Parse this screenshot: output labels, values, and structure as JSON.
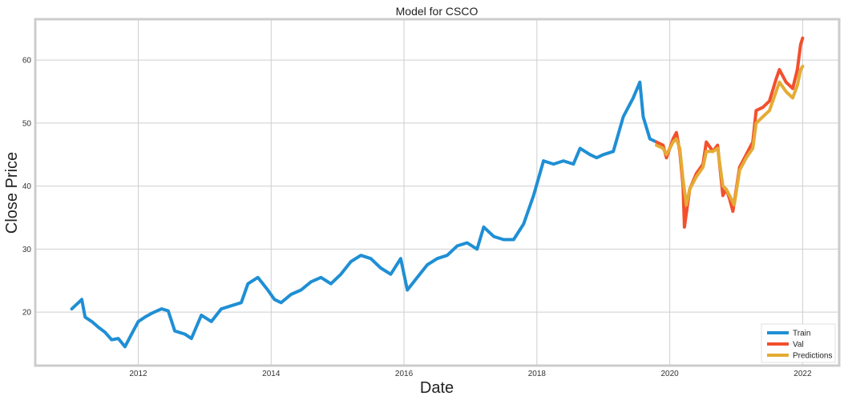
{
  "chart_data": {
    "type": "line",
    "title": "Model for CSCO",
    "xlabel": "Date",
    "ylabel": "Close Price",
    "xlim": [
      2010.45,
      2022.55
    ],
    "ylim": [
      11.5,
      66.5
    ],
    "x_ticks": [
      2012,
      2014,
      2016,
      2018,
      2020,
      2022
    ],
    "x_tick_labels": [
      "2012",
      "2014",
      "2016",
      "2018",
      "2020",
      "2022"
    ],
    "y_ticks": [
      20,
      30,
      40,
      50,
      60
    ],
    "y_tick_labels": [
      "20",
      "30",
      "40",
      "50",
      "60"
    ],
    "grid": true,
    "legend_position": "lower-right",
    "colors": {
      "train": "#1f8fd4",
      "val": "#f2502e",
      "pred": "#e5ab34",
      "grid": "#cfcfcf",
      "frame": "#cccccc"
    },
    "series": [
      {
        "name": "Train",
        "color": "#1f8fd4",
        "points": [
          [
            2011.0,
            20.5
          ],
          [
            2011.05,
            21.0
          ],
          [
            2011.1,
            21.5
          ],
          [
            2011.15,
            22.0
          ],
          [
            2011.2,
            19.2
          ],
          [
            2011.3,
            18.5
          ],
          [
            2011.4,
            17.6
          ],
          [
            2011.5,
            16.8
          ],
          [
            2011.6,
            15.6
          ],
          [
            2011.7,
            15.8
          ],
          [
            2011.8,
            14.5
          ],
          [
            2011.9,
            16.5
          ],
          [
            2012.0,
            18.5
          ],
          [
            2012.1,
            19.2
          ],
          [
            2012.2,
            19.8
          ],
          [
            2012.35,
            20.5
          ],
          [
            2012.45,
            20.2
          ],
          [
            2012.55,
            17.0
          ],
          [
            2012.7,
            16.5
          ],
          [
            2012.8,
            15.8
          ],
          [
            2012.95,
            19.5
          ],
          [
            2013.1,
            18.5
          ],
          [
            2013.25,
            20.5
          ],
          [
            2013.4,
            21.0
          ],
          [
            2013.55,
            21.5
          ],
          [
            2013.65,
            24.5
          ],
          [
            2013.8,
            25.5
          ],
          [
            2013.95,
            23.5
          ],
          [
            2014.05,
            22.0
          ],
          [
            2014.15,
            21.5
          ],
          [
            2014.3,
            22.8
          ],
          [
            2014.45,
            23.5
          ],
          [
            2014.6,
            24.8
          ],
          [
            2014.75,
            25.5
          ],
          [
            2014.9,
            24.5
          ],
          [
            2015.05,
            26.0
          ],
          [
            2015.2,
            28.0
          ],
          [
            2015.35,
            29.0
          ],
          [
            2015.5,
            28.5
          ],
          [
            2015.65,
            27.0
          ],
          [
            2015.8,
            26.0
          ],
          [
            2015.95,
            28.5
          ],
          [
            2016.05,
            23.5
          ],
          [
            2016.2,
            25.5
          ],
          [
            2016.35,
            27.5
          ],
          [
            2016.5,
            28.5
          ],
          [
            2016.65,
            29.0
          ],
          [
            2016.8,
            30.5
          ],
          [
            2016.95,
            31.0
          ],
          [
            2017.1,
            30.0
          ],
          [
            2017.2,
            33.5
          ],
          [
            2017.35,
            32.0
          ],
          [
            2017.5,
            31.5
          ],
          [
            2017.65,
            31.5
          ],
          [
            2017.8,
            34.0
          ],
          [
            2017.95,
            38.5
          ],
          [
            2018.1,
            44.0
          ],
          [
            2018.25,
            43.5
          ],
          [
            2018.4,
            44.0
          ],
          [
            2018.55,
            43.5
          ],
          [
            2018.65,
            46.0
          ],
          [
            2018.8,
            45.0
          ],
          [
            2018.9,
            44.5
          ],
          [
            2019.0,
            45.0
          ],
          [
            2019.15,
            45.5
          ],
          [
            2019.3,
            51.0
          ],
          [
            2019.45,
            54.0
          ],
          [
            2019.55,
            56.5
          ],
          [
            2019.6,
            51.0
          ],
          [
            2019.7,
            47.5
          ],
          [
            2019.8,
            47.0
          ]
        ]
      },
      {
        "name": "Val",
        "color": "#f2502e",
        "points": [
          [
            2019.8,
            47.0
          ],
          [
            2019.9,
            46.5
          ],
          [
            2019.95,
            44.5
          ],
          [
            2020.05,
            47.5
          ],
          [
            2020.1,
            48.5
          ],
          [
            2020.15,
            45.5
          ],
          [
            2020.2,
            40.0
          ],
          [
            2020.22,
            33.5
          ],
          [
            2020.3,
            39.5
          ],
          [
            2020.4,
            42.0
          ],
          [
            2020.5,
            43.5
          ],
          [
            2020.55,
            47.0
          ],
          [
            2020.65,
            45.5
          ],
          [
            2020.72,
            46.5
          ],
          [
            2020.8,
            38.5
          ],
          [
            2020.85,
            39.5
          ],
          [
            2020.9,
            38.0
          ],
          [
            2020.95,
            36.0
          ],
          [
            2021.05,
            43.0
          ],
          [
            2021.15,
            45.0
          ],
          [
            2021.25,
            47.0
          ],
          [
            2021.3,
            52.0
          ],
          [
            2021.4,
            52.5
          ],
          [
            2021.5,
            53.5
          ],
          [
            2021.6,
            57.0
          ],
          [
            2021.65,
            58.5
          ],
          [
            2021.75,
            56.5
          ],
          [
            2021.85,
            55.5
          ],
          [
            2021.92,
            58.5
          ],
          [
            2021.97,
            62.5
          ],
          [
            2022.0,
            63.5
          ]
        ]
      },
      {
        "name": "Predictions",
        "color": "#e5ab34",
        "points": [
          [
            2019.8,
            46.5
          ],
          [
            2019.9,
            46.0
          ],
          [
            2019.95,
            45.0
          ],
          [
            2020.05,
            47.0
          ],
          [
            2020.1,
            47.5
          ],
          [
            2020.15,
            46.0
          ],
          [
            2020.2,
            41.0
          ],
          [
            2020.25,
            37.0
          ],
          [
            2020.3,
            39.5
          ],
          [
            2020.4,
            41.5
          ],
          [
            2020.5,
            43.0
          ],
          [
            2020.55,
            45.5
          ],
          [
            2020.65,
            45.5
          ],
          [
            2020.72,
            46.0
          ],
          [
            2020.8,
            40.0
          ],
          [
            2020.85,
            39.5
          ],
          [
            2020.9,
            38.5
          ],
          [
            2020.97,
            37.0
          ],
          [
            2021.05,
            42.5
          ],
          [
            2021.15,
            44.5
          ],
          [
            2021.25,
            46.0
          ],
          [
            2021.3,
            50.0
          ],
          [
            2021.4,
            51.0
          ],
          [
            2021.5,
            52.0
          ],
          [
            2021.6,
            55.0
          ],
          [
            2021.65,
            56.5
          ],
          [
            2021.75,
            55.0
          ],
          [
            2021.85,
            54.0
          ],
          [
            2021.92,
            56.0
          ],
          [
            2021.97,
            58.5
          ],
          [
            2022.0,
            59.0
          ]
        ]
      }
    ]
  }
}
